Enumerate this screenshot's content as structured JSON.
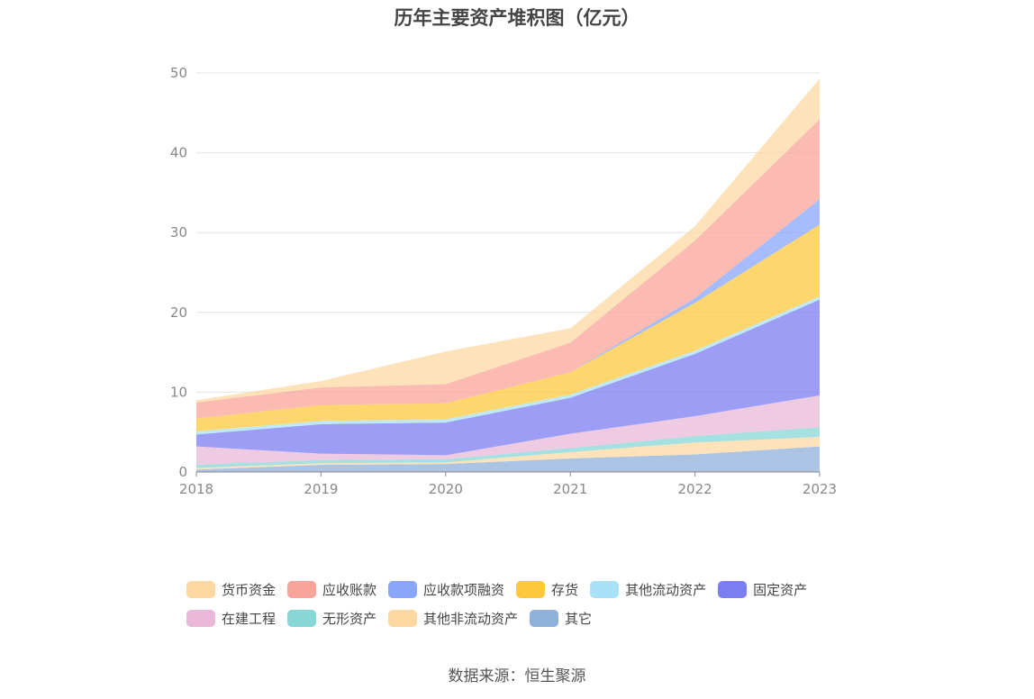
{
  "chart_data": {
    "type": "area",
    "stacked": true,
    "title": "历年主要资产堆积图（亿元）",
    "x": [
      "2018",
      "2019",
      "2020",
      "2021",
      "2022",
      "2023"
    ],
    "ylim": [
      0,
      50
    ],
    "yticks": [
      0,
      10,
      20,
      30,
      40,
      50
    ],
    "xlabel": "",
    "ylabel": "",
    "grid": true,
    "legend_position": "bottom",
    "series": [
      {
        "name": "其它",
        "color": "#8fb0da",
        "values": [
          0.3,
          0.9,
          1.0,
          1.7,
          2.2,
          3.2
        ]
      },
      {
        "name": "其他非流动资产",
        "color": "#fdd8a3",
        "values": [
          0.2,
          0.2,
          0.2,
          0.8,
          1.5,
          1.2
        ]
      },
      {
        "name": "无形资产",
        "color": "#86d7d5",
        "values": [
          0.4,
          0.4,
          0.4,
          0.5,
          0.8,
          1.2
        ]
      },
      {
        "name": "在建工程",
        "color": "#eab9d9",
        "values": [
          2.3,
          0.8,
          0.5,
          1.8,
          2.5,
          4.0
        ]
      },
      {
        "name": "固定资产",
        "color": "#7b7ef2",
        "values": [
          1.5,
          3.7,
          4.1,
          4.5,
          7.8,
          12.0
        ]
      },
      {
        "name": "其他流动资产",
        "color": "#a9e2f7",
        "values": [
          0.4,
          0.4,
          0.4,
          0.4,
          0.4,
          0.4
        ]
      },
      {
        "name": "存货",
        "color": "#fcc93c",
        "values": [
          1.6,
          2.0,
          2.0,
          2.8,
          6.0,
          9.0
        ]
      },
      {
        "name": "应收款项融资",
        "color": "#89a6fb",
        "values": [
          0.0,
          0.0,
          0.0,
          0.0,
          0.6,
          3.2
        ]
      },
      {
        "name": "应收账款",
        "color": "#f9a49a",
        "values": [
          2.0,
          2.2,
          2.4,
          3.7,
          7.2,
          10.0
        ]
      },
      {
        "name": "货币资金",
        "color": "#fdd8a3",
        "values": [
          0.3,
          0.8,
          4.1,
          1.8,
          1.8,
          5.1
        ]
      }
    ]
  },
  "legend": {
    "rows": [
      [
        {
          "label": "货币资金",
          "color": "#fdd8a3"
        },
        {
          "label": "应收账款",
          "color": "#f9a49a"
        },
        {
          "label": "应收款项融资",
          "color": "#89a6fb"
        },
        {
          "label": "存货",
          "color": "#fcc93c"
        },
        {
          "label": "其他流动资产",
          "color": "#a9e2f7"
        },
        {
          "label": "固定资产",
          "color": "#7b7ef2"
        }
      ],
      [
        {
          "label": "在建工程",
          "color": "#eab9d9"
        },
        {
          "label": "无形资产",
          "color": "#86d7d5"
        },
        {
          "label": "其他非流动资产",
          "color": "#fdd8a3"
        },
        {
          "label": "其它",
          "color": "#8fb0da"
        }
      ]
    ]
  },
  "source": "数据来源：恒生聚源"
}
